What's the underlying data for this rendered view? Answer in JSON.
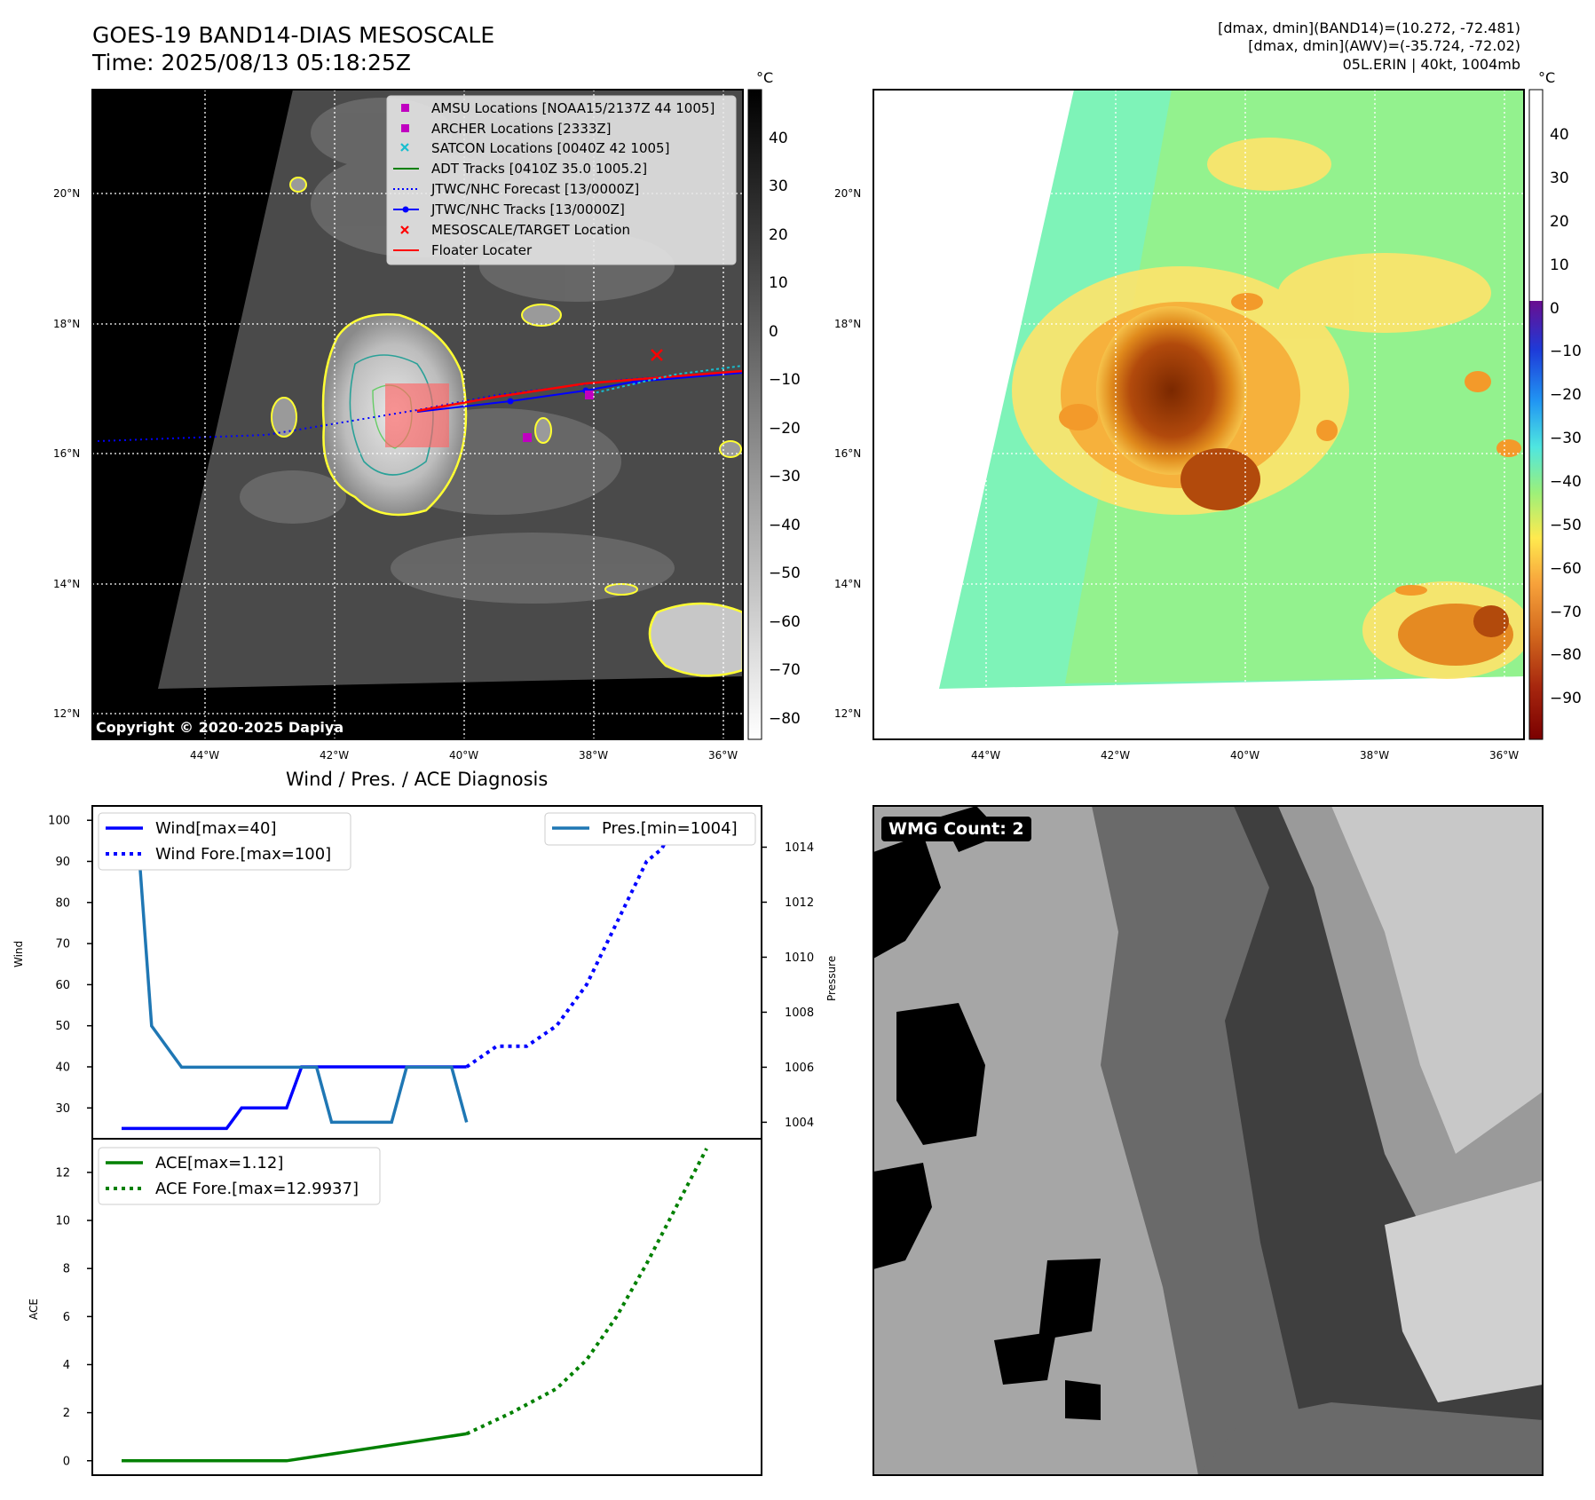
{
  "header": {
    "title": "GOES-19 BAND14-DIAS MESOSCALE",
    "time": "Time: 2025/08/13 05:18:25Z",
    "info": [
      "[dmax, dmin](BAND14)=(10.272, -72.481)",
      "[dmax, dmin](AWV)=(-35.724, -72.02)",
      "05L.ERIN | 40kt, 1004mb"
    ]
  },
  "copyright": "Copyright © 2020-2025 Dapiya",
  "colors": {
    "wind": "#0000ff",
    "pres": "#1f77b4",
    "ace": "#008000",
    "track": "#ff0000",
    "forecast": "#0000ff"
  },
  "map_legend": [
    {
      "label": "AMSU Locations [NOAA15/2137Z 44 1005]",
      "marker": "square",
      "color": "#c000c0"
    },
    {
      "label": "ARCHER Locations [2333Z]",
      "marker": "square",
      "color": "#c000c0"
    },
    {
      "label": "SATCON Locations [0040Z 42 1005]",
      "marker": "x",
      "color": "#17becf"
    },
    {
      "label": "ADT Tracks [0410Z 35.0 1005.2]",
      "marker": "line",
      "color": "#008000"
    },
    {
      "label": "JTWC/NHC Forecast [13/0000Z]",
      "marker": "dotted",
      "color": "#0000ff"
    },
    {
      "label": "JTWC/NHC Tracks [13/0000Z]",
      "marker": "dotline",
      "color": "#0000ff"
    },
    {
      "label": "MESOSCALE/TARGET Location",
      "marker": "x",
      "color": "#ff0000"
    },
    {
      "label": "Floater Locater",
      "marker": "line",
      "color": "#ff0000"
    }
  ],
  "map_axes": {
    "lat_labels": [
      "20°N",
      "18°N",
      "16°N",
      "14°N",
      "12°N"
    ],
    "lon_labels": [
      "44°W",
      "42°W",
      "40°W",
      "38°W",
      "36°W"
    ]
  },
  "colorbar_ir": {
    "unit": "°C",
    "ticks": [
      "40",
      "30",
      "20",
      "10",
      "0",
      "−10",
      "−20",
      "−30",
      "−40",
      "−50",
      "−60",
      "−70",
      "−80"
    ]
  },
  "colorbar_wv": {
    "unit": "°C",
    "ticks": [
      "40",
      "30",
      "20",
      "10",
      "0",
      "−10",
      "−20",
      "−30",
      "−40",
      "−50",
      "−60",
      "−70",
      "−80",
      "−90"
    ]
  },
  "wmg_label": "WMG Count: 2",
  "chart_data": [
    {
      "type": "line",
      "title": "Wind / Pres. / ACE Diagnosis",
      "ylabel": "Wind",
      "y2label": "Pressure",
      "ylim": [
        22.5,
        103.5
      ],
      "y2lim": [
        1003.4,
        1015.5
      ],
      "yticks": [
        30,
        40,
        50,
        60,
        70,
        80,
        90,
        100
      ],
      "y2ticks": [
        1004,
        1006,
        1008,
        1010,
        1012,
        1014
      ],
      "x": [
        0,
        1,
        2,
        3,
        4,
        5,
        6,
        7,
        8,
        9,
        10,
        11,
        12,
        13,
        14,
        15,
        16,
        17,
        18,
        19,
        20,
        21,
        22,
        23,
        24,
        25,
        26,
        27,
        28,
        29,
        30,
        31,
        32,
        33,
        34,
        35,
        36,
        37,
        38,
        39
      ],
      "series": [
        {
          "name": "Wind[max=40]",
          "axis": "left",
          "style": "solid",
          "x": [
            0,
            7,
            8,
            11,
            12,
            23
          ],
          "values": [
            25,
            25,
            30,
            30,
            40,
            40
          ]
        },
        {
          "name": "Wind Fore.[max=100]",
          "axis": "left",
          "style": "dotted",
          "x": [
            23,
            25,
            27,
            29,
            31,
            33,
            35,
            36,
            37
          ],
          "values": [
            40,
            45,
            45,
            50,
            60,
            75,
            90,
            93,
            100
          ]
        },
        {
          "name": "Pres.[min=1004]",
          "axis": "right",
          "style": "solid",
          "x": [
            0,
            1,
            2,
            4,
            5,
            6,
            7,
            8,
            9,
            10,
            11,
            12,
            13,
            14,
            15,
            16,
            17,
            18,
            19,
            20,
            21,
            22,
            23
          ],
          "values": [
            1015,
            1015,
            1007.5,
            1006,
            1006,
            1006,
            1006,
            1006,
            1006,
            1006,
            1006,
            1006,
            1006,
            1004,
            1004,
            1004,
            1004,
            1004,
            1006,
            1006,
            1006,
            1006,
            1004
          ]
        },
        {
          "name": "ACE[max=1.12]",
          "axis": "ace",
          "style": "solid",
          "x": [
            0,
            11,
            23
          ],
          "values": [
            0,
            0,
            1.12
          ]
        },
        {
          "name": "ACE Fore.[max=12.9937]",
          "axis": "ace",
          "style": "dotted",
          "x": [
            23,
            26,
            29,
            31,
            33,
            35,
            37,
            39
          ],
          "values": [
            1.12,
            2.0,
            3.0,
            4.2,
            6.0,
            8.2,
            10.6,
            12.99
          ]
        }
      ],
      "ace_ylabel": "ACE",
      "ace_ylim": [
        -0.6,
        13.4
      ],
      "ace_yticks": [
        0,
        2,
        4,
        6,
        8,
        10,
        12
      ]
    }
  ]
}
